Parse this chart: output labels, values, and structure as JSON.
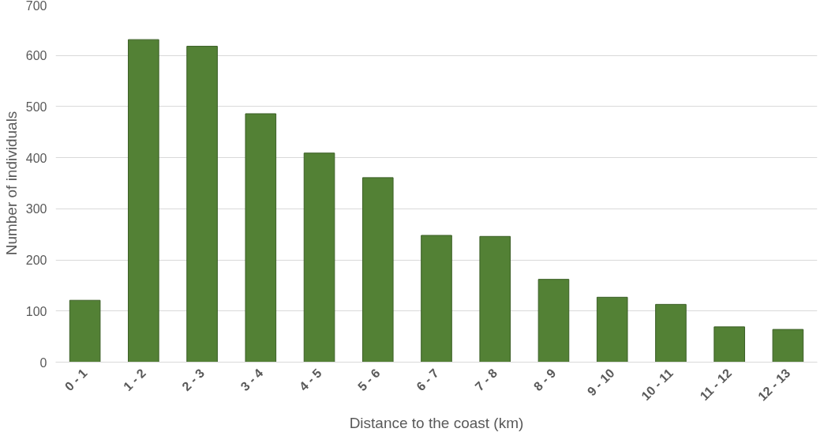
{
  "chart_data": {
    "type": "bar",
    "xlabel": "Distance to the coast (km)",
    "ylabel": "Number of individuals",
    "categories": [
      "0 - 1",
      "1 - 2",
      "2 - 3",
      "3 - 4",
      "4 - 5",
      "5 - 6",
      "6 - 7",
      "7 - 8",
      "8 - 9",
      "9 - 10",
      "10 - 11",
      "11 - 12",
      "12 - 13"
    ],
    "values": [
      121,
      631,
      618,
      486,
      409,
      361,
      248,
      246,
      162,
      127,
      113,
      69,
      64
    ],
    "color": "#538135",
    "ylim": [
      0,
      700
    ],
    "yticks": [
      0,
      100,
      200,
      300,
      400,
      500,
      600,
      700
    ],
    "grid": "y"
  }
}
